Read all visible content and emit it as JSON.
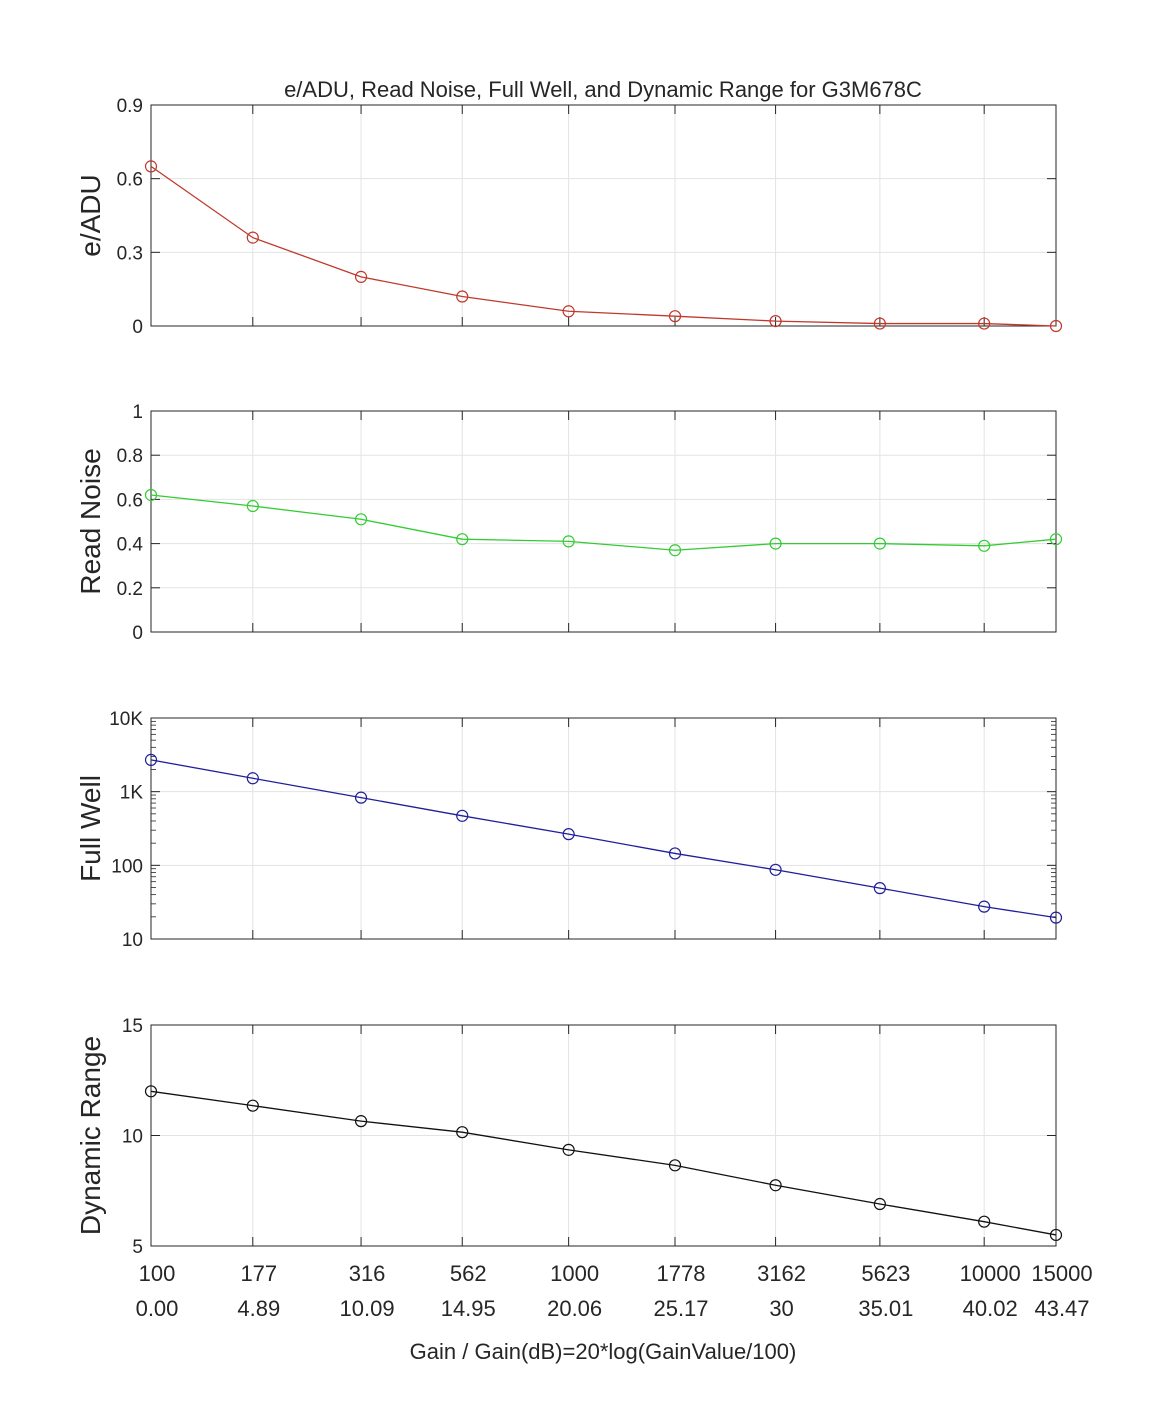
{
  "chart_data": {
    "title": "e/ADU, Read Noise, Full Well, and Dynamic Range for G3M678C",
    "xlabel": "Gain / Gain(dB)=20*log(GainValue/100)",
    "x_tick_labels_gain": [
      "100",
      "177",
      "316",
      "562",
      "1000",
      "1778",
      "3162",
      "5623",
      "10000",
      "15000"
    ],
    "x_tick_labels_db": [
      "0.00",
      "4.89",
      "10.09",
      "14.95",
      "20.06",
      "25.17",
      "30",
      "35.01",
      "40.02",
      "43.47"
    ],
    "x_db": [
      0,
      4.89,
      10.09,
      14.95,
      20.06,
      25.17,
      30,
      35.01,
      40.02,
      43.47
    ],
    "panels": [
      {
        "type": "line",
        "ylabel": "e/ADU",
        "color": "#c0392b",
        "ylim": [
          0,
          0.9
        ],
        "yticks": [
          0,
          0.3,
          0.6,
          0.9
        ],
        "ytick_labels": [
          "0",
          "0.3",
          "0.6",
          "0.9"
        ],
        "scale": "linear",
        "grid": true,
        "values": [
          0.65,
          0.36,
          0.2,
          0.12,
          0.06,
          0.04,
          0.02,
          0.01,
          0.01,
          0.0
        ]
      },
      {
        "type": "line",
        "ylabel": "Read Noise",
        "color": "#33cc33",
        "ylim": [
          0,
          1
        ],
        "yticks": [
          0,
          0.2,
          0.4,
          0.6,
          0.8,
          1
        ],
        "ytick_labels": [
          "0",
          "0.2",
          "0.4",
          "0.6",
          "0.8",
          "1"
        ],
        "scale": "linear",
        "grid": true,
        "values": [
          0.62,
          0.57,
          0.51,
          0.42,
          0.41,
          0.37,
          0.4,
          0.4,
          0.39,
          0.42
        ]
      },
      {
        "type": "line",
        "ylabel": "Full Well",
        "color": "#1f1f9a",
        "ylim": [
          10,
          10000
        ],
        "yticks": [
          10,
          100,
          1000,
          10000
        ],
        "ytick_labels": [
          "10",
          "100",
          "1K",
          "10K"
        ],
        "scale": "log",
        "grid": true,
        "values": [
          2700,
          1520,
          830,
          470,
          265,
          145,
          87,
          49,
          27.5,
          19.5
        ]
      },
      {
        "type": "line",
        "ylabel": "Dynamic Range",
        "color": "#111111",
        "ylim": [
          5,
          15
        ],
        "yticks": [
          5,
          10,
          15
        ],
        "ytick_labels": [
          "5",
          "10",
          "15"
        ],
        "scale": "linear",
        "grid": true,
        "values": [
          12.0,
          11.35,
          10.65,
          10.15,
          9.35,
          8.65,
          7.75,
          6.9,
          6.1,
          5.5
        ]
      }
    ]
  }
}
